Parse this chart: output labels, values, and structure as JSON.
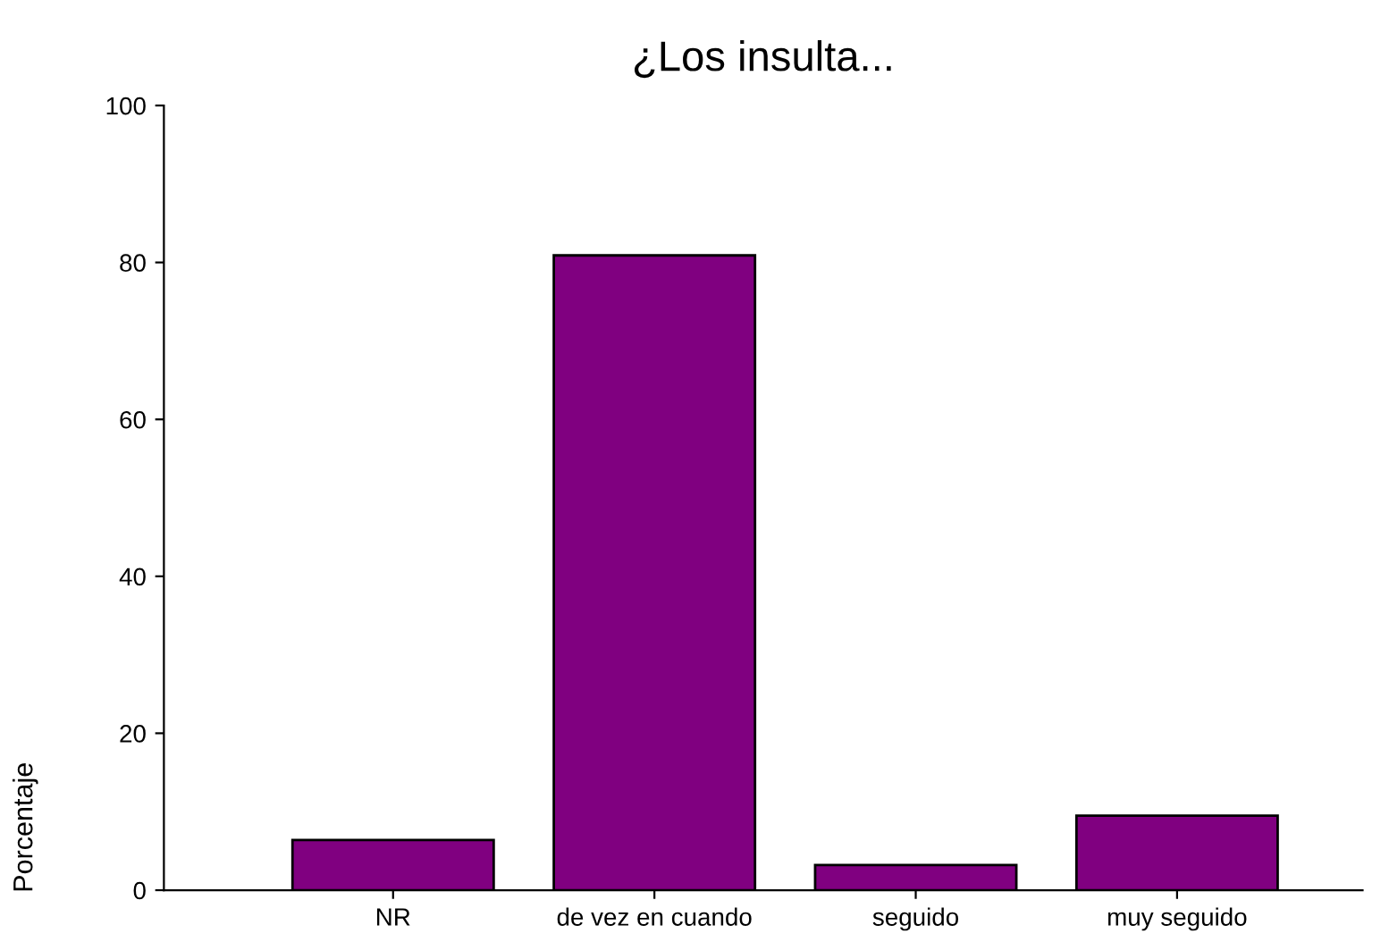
{
  "chart_data": {
    "type": "bar",
    "title": "¿Los insulta...",
    "ylabel": "Porcentaje",
    "categories": [
      "NR",
      "de vez en cuando",
      "seguido",
      "muy seguido"
    ],
    "values": [
      6.4,
      80.9,
      3.2,
      9.5
    ],
    "color": "#800080",
    "ylim": [
      0,
      100
    ],
    "yticks": [
      0,
      20,
      40,
      60,
      80,
      100
    ],
    "grid": false,
    "legend": false
  }
}
